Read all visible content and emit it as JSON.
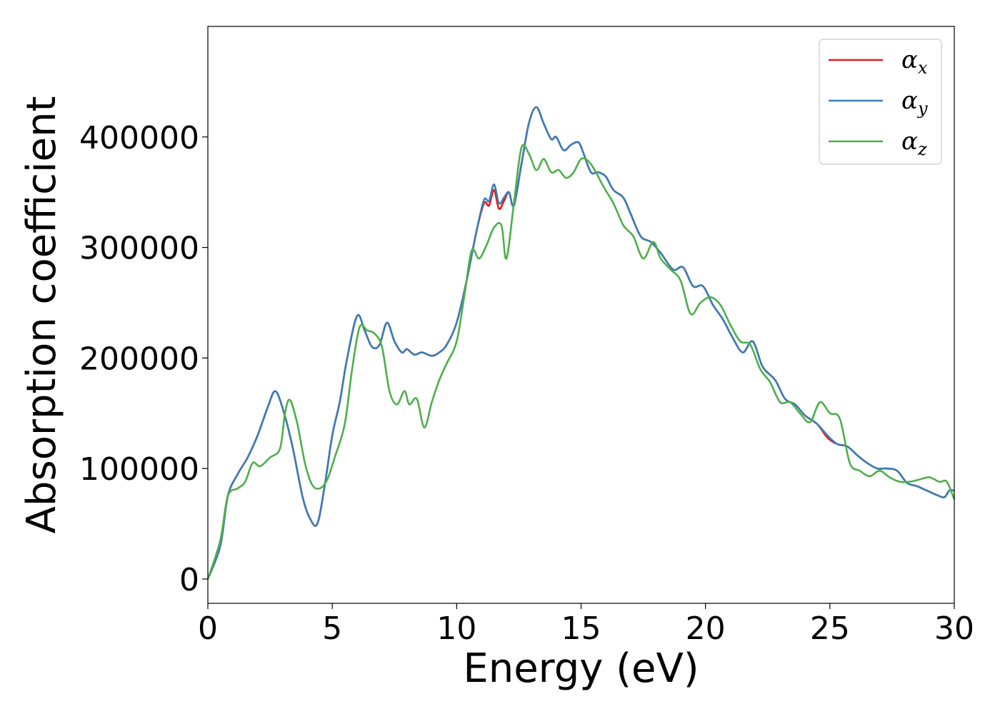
{
  "chart_data": {
    "type": "line",
    "xlabel": "Energy (eV)",
    "ylabel": "Absorption coefficient",
    "xlim": [
      0,
      30
    ],
    "ylim": [
      -22000,
      500000
    ],
    "xticks": [
      0,
      5,
      10,
      15,
      20,
      25,
      30
    ],
    "xtick_labels": [
      "0",
      "5",
      "10",
      "15",
      "20",
      "25",
      "30"
    ],
    "yticks": [
      0,
      100000,
      200000,
      300000,
      400000
    ],
    "ytick_labels": [
      "0",
      "100000",
      "200000",
      "300000",
      "400000"
    ],
    "grid": false,
    "legend_position": "top-right",
    "series": [
      {
        "name": "α",
        "subscript": "x",
        "color": "#e41a1c",
        "x": [
          0,
          0.5,
          0.8,
          1.2,
          1.6,
          2.0,
          2.4,
          2.7,
          3.0,
          3.4,
          3.8,
          4.1,
          4.4,
          4.7,
          5.0,
          5.3,
          5.6,
          6.0,
          6.3,
          6.6,
          6.9,
          7.2,
          7.5,
          7.8,
          8.0,
          8.3,
          8.6,
          9.0,
          9.3,
          9.6,
          10.0,
          10.4,
          10.8,
          11.1,
          11.3,
          11.5,
          11.7,
          11.9,
          12.1,
          12.3,
          12.6,
          12.9,
          13.2,
          13.5,
          13.8,
          14.0,
          14.3,
          14.6,
          14.9,
          15.1,
          15.4,
          15.7,
          16.0,
          16.3,
          16.7,
          17.0,
          17.4,
          17.8,
          18.2,
          18.7,
          19.1,
          19.5,
          19.9,
          20.3,
          20.7,
          21.1,
          21.5,
          21.9,
          22.3,
          22.8,
          23.2,
          23.6,
          24.0,
          24.5,
          24.9,
          25.3,
          25.7,
          26.1,
          26.5,
          26.9,
          27.3,
          27.7,
          28.1,
          28.5,
          28.9,
          29.3,
          29.6,
          29.8,
          30.0
        ],
        "y": [
          0,
          30000,
          75000,
          95000,
          110000,
          130000,
          155000,
          170000,
          155000,
          120000,
          75000,
          55000,
          50000,
          85000,
          130000,
          160000,
          200000,
          238000,
          225000,
          210000,
          212000,
          232000,
          215000,
          205000,
          208000,
          203000,
          205000,
          202000,
          205000,
          212000,
          232000,
          270000,
          315000,
          340000,
          338000,
          352000,
          335000,
          342000,
          350000,
          338000,
          375000,
          412000,
          427000,
          412000,
          398000,
          400000,
          388000,
          393000,
          395000,
          385000,
          368000,
          368000,
          364000,
          352000,
          345000,
          330000,
          310000,
          305000,
          295000,
          280000,
          282000,
          265000,
          265000,
          248000,
          235000,
          218000,
          205000,
          215000,
          192000,
          180000,
          163000,
          158000,
          148000,
          140000,
          128000,
          122000,
          120000,
          112000,
          105000,
          100000,
          100000,
          98000,
          87000,
          84000,
          80000,
          76000,
          74000,
          80000,
          80000
        ]
      },
      {
        "name": "α",
        "subscript": "y",
        "color": "#377eb8",
        "x": [
          0,
          0.5,
          0.8,
          1.2,
          1.6,
          2.0,
          2.4,
          2.7,
          3.0,
          3.4,
          3.8,
          4.1,
          4.4,
          4.7,
          5.0,
          5.3,
          5.6,
          6.0,
          6.3,
          6.6,
          6.9,
          7.2,
          7.5,
          7.8,
          8.0,
          8.3,
          8.6,
          9.0,
          9.3,
          9.6,
          10.0,
          10.4,
          10.8,
          11.1,
          11.3,
          11.5,
          11.7,
          11.9,
          12.1,
          12.3,
          12.6,
          12.9,
          13.2,
          13.5,
          13.8,
          14.0,
          14.3,
          14.6,
          14.9,
          15.1,
          15.4,
          15.7,
          16.0,
          16.3,
          16.7,
          17.0,
          17.4,
          17.8,
          18.2,
          18.7,
          19.1,
          19.5,
          19.9,
          20.3,
          20.7,
          21.1,
          21.5,
          21.9,
          22.3,
          22.8,
          23.2,
          23.6,
          24.0,
          24.5,
          24.9,
          25.3,
          25.7,
          26.1,
          26.5,
          26.9,
          27.3,
          27.7,
          28.1,
          28.5,
          28.9,
          29.3,
          29.6,
          29.8,
          30.0
        ],
        "y": [
          0,
          30000,
          75000,
          95000,
          110000,
          130000,
          155000,
          170000,
          155000,
          120000,
          75000,
          55000,
          50000,
          85000,
          130000,
          160000,
          200000,
          238000,
          225000,
          210000,
          212000,
          232000,
          215000,
          205000,
          208000,
          203000,
          205000,
          202000,
          205000,
          212000,
          232000,
          270000,
          315000,
          343000,
          342000,
          357000,
          340000,
          345000,
          350000,
          338000,
          375000,
          412000,
          427000,
          412000,
          398000,
          400000,
          388000,
          393000,
          395000,
          385000,
          368000,
          368000,
          364000,
          352000,
          345000,
          330000,
          310000,
          305000,
          295000,
          280000,
          282000,
          265000,
          265000,
          248000,
          235000,
          218000,
          205000,
          215000,
          192000,
          180000,
          163000,
          158000,
          148000,
          140000,
          130000,
          122000,
          120000,
          112000,
          105000,
          100000,
          100000,
          98000,
          87000,
          84000,
          80000,
          76000,
          74000,
          80000,
          80000
        ]
      },
      {
        "name": "α",
        "subscript": "z",
        "color": "#4daf4a",
        "x": [
          0,
          0.5,
          0.8,
          1.2,
          1.5,
          1.8,
          2.1,
          2.5,
          2.9,
          3.1,
          3.3,
          3.6,
          3.9,
          4.2,
          4.5,
          4.8,
          5.1,
          5.5,
          5.8,
          6.1,
          6.4,
          6.7,
          7.0,
          7.3,
          7.6,
          7.9,
          8.1,
          8.4,
          8.7,
          9.0,
          9.3,
          9.6,
          10.0,
          10.3,
          10.6,
          10.9,
          11.2,
          11.5,
          11.8,
          12.0,
          12.3,
          12.6,
          12.9,
          13.2,
          13.5,
          13.8,
          14.1,
          14.4,
          14.7,
          15.0,
          15.3,
          15.6,
          15.9,
          16.3,
          16.7,
          17.1,
          17.5,
          17.9,
          18.2,
          18.6,
          19.0,
          19.4,
          19.8,
          20.2,
          20.6,
          21.0,
          21.4,
          21.8,
          22.2,
          22.6,
          23.0,
          23.4,
          23.8,
          24.2,
          24.6,
          25.0,
          25.4,
          25.8,
          26.2,
          26.6,
          27.0,
          27.4,
          27.8,
          28.2,
          28.6,
          29.0,
          29.4,
          29.7,
          30.0
        ],
        "y": [
          0,
          35000,
          75000,
          82000,
          88000,
          105000,
          102000,
          110000,
          118000,
          150000,
          162000,
          140000,
          105000,
          85000,
          82000,
          90000,
          110000,
          140000,
          190000,
          228000,
          225000,
          222000,
          210000,
          170000,
          158000,
          170000,
          158000,
          163000,
          137000,
          160000,
          180000,
          195000,
          215000,
          255000,
          297000,
          290000,
          302000,
          318000,
          320000,
          290000,
          340000,
          390000,
          385000,
          370000,
          380000,
          368000,
          370000,
          363000,
          368000,
          380000,
          378000,
          368000,
          355000,
          340000,
          320000,
          310000,
          290000,
          305000,
          290000,
          280000,
          270000,
          240000,
          250000,
          255000,
          248000,
          230000,
          215000,
          212000,
          190000,
          178000,
          160000,
          160000,
          150000,
          142000,
          160000,
          150000,
          145000,
          105000,
          98000,
          93000,
          98000,
          92000,
          88000,
          88000,
          90000,
          92000,
          88000,
          88000,
          72000
        ]
      }
    ]
  }
}
